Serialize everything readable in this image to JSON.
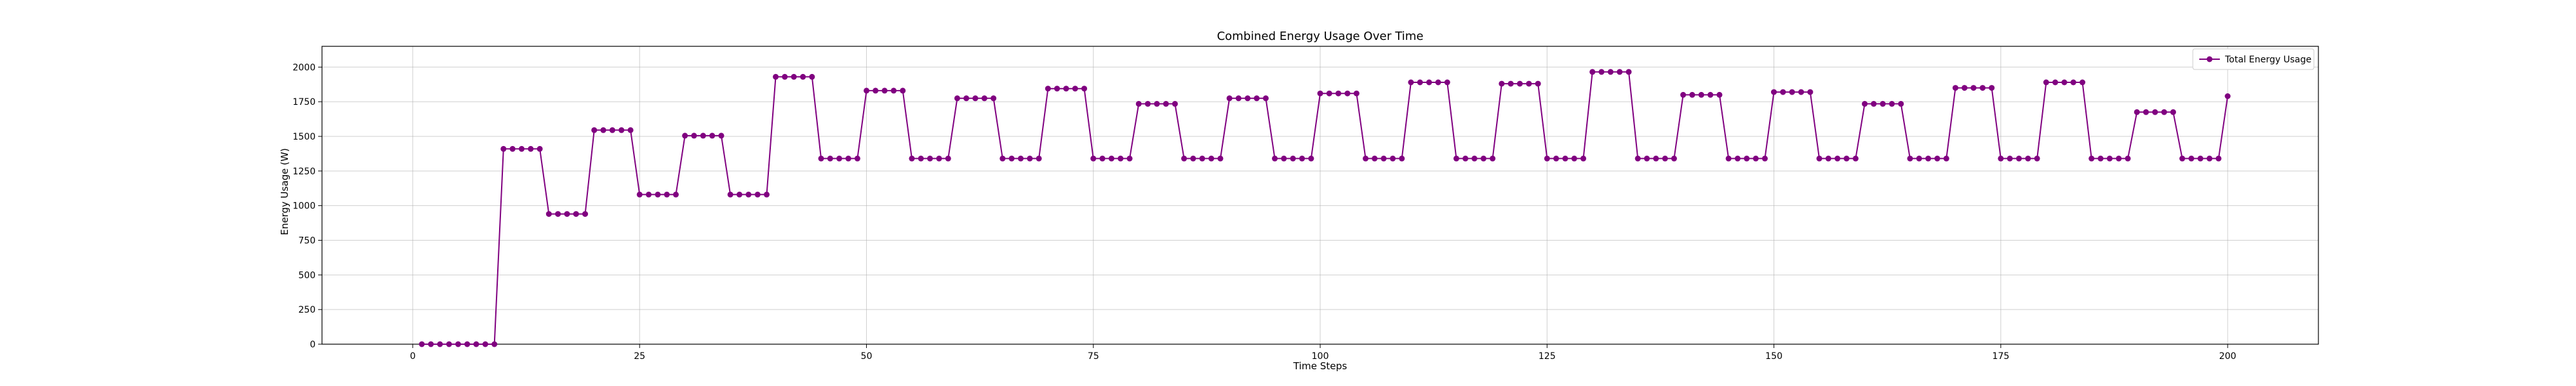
{
  "chart_data": {
    "type": "line",
    "title": "Combined Energy Usage Over Time",
    "xlabel": "Time Steps",
    "ylabel": "Energy Usage (W)",
    "xlim": [
      -10,
      210
    ],
    "ylim": [
      0,
      2150
    ],
    "xticks": [
      0,
      25,
      50,
      75,
      100,
      125,
      150,
      175,
      200
    ],
    "yticks": [
      0,
      250,
      500,
      750,
      1000,
      1250,
      1500,
      1750,
      2000
    ],
    "grid": true,
    "legend_position": "top-right",
    "colors": {
      "series": "#800080"
    },
    "series": [
      {
        "name": "Total Energy Usage",
        "marker": "circle",
        "segments": [
          {
            "start": 1,
            "end": 9,
            "value": 0
          },
          {
            "start": 10,
            "end": 14,
            "value": 1410
          },
          {
            "start": 15,
            "end": 19,
            "value": 940
          },
          {
            "start": 20,
            "end": 24,
            "value": 1545
          },
          {
            "start": 25,
            "end": 29,
            "value": 1080
          },
          {
            "start": 30,
            "end": 34,
            "value": 1505
          },
          {
            "start": 35,
            "end": 39,
            "value": 1080
          },
          {
            "start": 40,
            "end": 44,
            "value": 1930
          },
          {
            "start": 45,
            "end": 49,
            "value": 1340
          },
          {
            "start": 50,
            "end": 54,
            "value": 1830
          },
          {
            "start": 55,
            "end": 59,
            "value": 1340
          },
          {
            "start": 60,
            "end": 64,
            "value": 1775
          },
          {
            "start": 65,
            "end": 69,
            "value": 1340
          },
          {
            "start": 70,
            "end": 74,
            "value": 1845
          },
          {
            "start": 75,
            "end": 79,
            "value": 1340
          },
          {
            "start": 80,
            "end": 84,
            "value": 1735
          },
          {
            "start": 85,
            "end": 89,
            "value": 1340
          },
          {
            "start": 90,
            "end": 94,
            "value": 1775
          },
          {
            "start": 95,
            "end": 99,
            "value": 1340
          },
          {
            "start": 100,
            "end": 104,
            "value": 1810
          },
          {
            "start": 105,
            "end": 109,
            "value": 1340
          },
          {
            "start": 110,
            "end": 114,
            "value": 1890
          },
          {
            "start": 115,
            "end": 119,
            "value": 1340
          },
          {
            "start": 120,
            "end": 124,
            "value": 1880
          },
          {
            "start": 125,
            "end": 129,
            "value": 1340
          },
          {
            "start": 130,
            "end": 134,
            "value": 1965
          },
          {
            "start": 135,
            "end": 139,
            "value": 1340
          },
          {
            "start": 140,
            "end": 144,
            "value": 1800
          },
          {
            "start": 145,
            "end": 149,
            "value": 1340
          },
          {
            "start": 150,
            "end": 154,
            "value": 1820
          },
          {
            "start": 155,
            "end": 159,
            "value": 1340
          },
          {
            "start": 160,
            "end": 164,
            "value": 1735
          },
          {
            "start": 165,
            "end": 169,
            "value": 1340
          },
          {
            "start": 170,
            "end": 174,
            "value": 1850
          },
          {
            "start": 175,
            "end": 179,
            "value": 1340
          },
          {
            "start": 180,
            "end": 184,
            "value": 1890
          },
          {
            "start": 185,
            "end": 189,
            "value": 1340
          },
          {
            "start": 190,
            "end": 194,
            "value": 1675
          },
          {
            "start": 195,
            "end": 199,
            "value": 1340
          },
          {
            "start": 200,
            "end": 200,
            "value": 1790
          }
        ]
      }
    ]
  }
}
